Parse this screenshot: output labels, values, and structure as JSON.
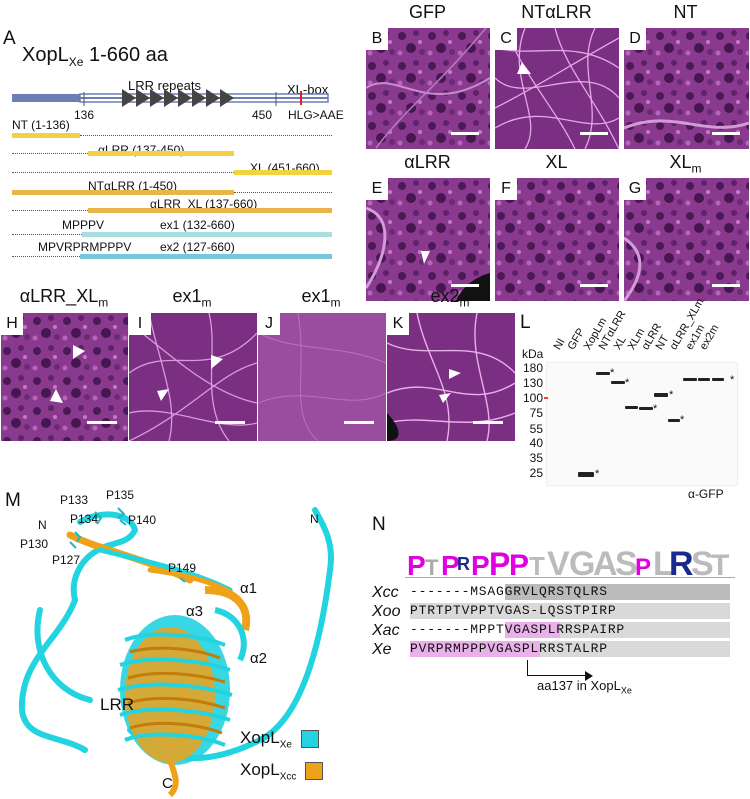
{
  "panelA": {
    "label": "A",
    "title": "XopL",
    "title_sub": "Xe",
    "title_rest": "1-660 aa",
    "lrr_label": "LRR repeats",
    "xlbox_label": "XL-box",
    "pos_136": "136",
    "pos_450": "450",
    "mutation": "HLG>AAE",
    "constructs": [
      {
        "label": "NT (1-136)",
        "color": "#f3d23f"
      },
      {
        "label": "αLRR (137-450)",
        "color": "#f3d23f"
      },
      {
        "label": "XL (451-660)",
        "color": "#f3d23f"
      },
      {
        "label": "NTαLRR (1-450)",
        "color": "#e9b44a"
      },
      {
        "label": "αLRR_XL (137-660)",
        "color": "#e9b44a"
      },
      {
        "label": "ex1 (132-660)",
        "prefix": "MPPPV",
        "color": "#a9dde0"
      },
      {
        "label": "ex2 (127-660)",
        "prefix": "MPVRPRMPPPV",
        "color": "#7cc6dc"
      }
    ]
  },
  "micrographs": [
    {
      "letter": "B",
      "title": "GFP"
    },
    {
      "letter": "C",
      "title": "NTαLRR"
    },
    {
      "letter": "D",
      "title": "NT"
    },
    {
      "letter": "E",
      "title": "αLRR"
    },
    {
      "letter": "F",
      "title": "XL"
    },
    {
      "letter": "G",
      "title": "XL",
      "title_sub": "m"
    },
    {
      "letter": "H",
      "title": "αLRR_XL",
      "title_sub": "m"
    },
    {
      "letter": "I",
      "title": "ex1",
      "title_sub": "m"
    },
    {
      "letter": "J",
      "title": "ex1",
      "title_sub": "m"
    },
    {
      "letter": "K",
      "title": "ex2",
      "title_sub": "m"
    }
  ],
  "panelL": {
    "label": "L",
    "kda_label": "kDa",
    "ladder": [
      "180",
      "130",
      "100",
      "75",
      "55",
      "40",
      "35",
      "25"
    ],
    "lanes": [
      "NI",
      "GFP",
      "XopLm",
      "NTαLRR",
      "XL",
      "XLm",
      "αLRR",
      "NT",
      "αLRR_XLm",
      "ex1m",
      "ex2m"
    ],
    "antibody": "α-GFP",
    "star": "*"
  },
  "panelM": {
    "label": "M",
    "residues": [
      "P133",
      "P135",
      "N",
      "P130",
      "P134",
      "P140",
      "P127",
      "P149"
    ],
    "helices": [
      "α1",
      "α3",
      "α2"
    ],
    "lrr": "LRR",
    "n_term": "N",
    "c_term": "C",
    "legend": [
      {
        "name": "XopL",
        "sub": "Xe",
        "color": "#22d3e0"
      },
      {
        "name": "XopL",
        "sub": "Xcc",
        "color": "#f0a11a"
      }
    ]
  },
  "panelN": {
    "label": "N",
    "rows": [
      {
        "name": "Xcc",
        "seq": "-------MSAGGRVLQRSTQLRS"
      },
      {
        "name": "Xoo",
        "seq": "PTRTPTVPPTVGAS-LQSSTPIRP"
      },
      {
        "name": "Xac",
        "seq": "-------MPPTVGASPLRRSPAIRP"
      },
      {
        "name": "Xe",
        "seq": "PVRPRMPPPVGASPLRRSTALRP"
      }
    ],
    "arrow_label": "aa137 in XopL",
    "arrow_sub": "Xe"
  }
}
